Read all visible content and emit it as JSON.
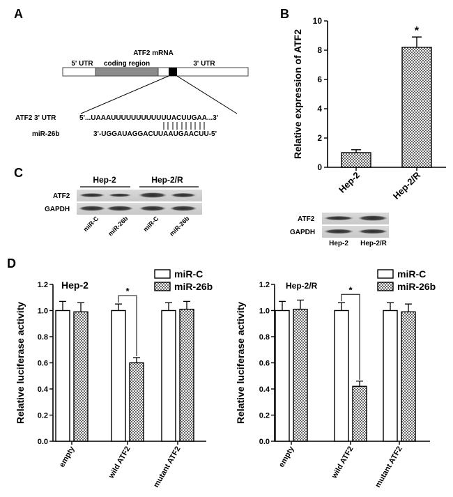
{
  "panel_labels": {
    "a": "A",
    "b": "B",
    "c": "C",
    "d": "D"
  },
  "panel_a": {
    "mrna_title": "ATF2 mRNA",
    "utr5": "5' UTR",
    "coding": "coding region",
    "utr3": "3' UTR",
    "seq1_label": "ATF2 3' UTR",
    "seq1": "5'...UAAAUUUUUUUUUUUUACUUGAA...3'",
    "seq2_label": "miR-26b",
    "seq2": "3'-UGGAUAGGACUUAAUGAACUU-5'"
  },
  "panel_c": {
    "group1": "Hep-2",
    "group2": "Hep-2/R",
    "row1": "ATF2",
    "row2": "GAPDH",
    "lanes": [
      "miR-C",
      "miR-26b",
      "miR-C",
      "miR-26b"
    ]
  },
  "blot_b": {
    "row1": "ATF2",
    "row2": "GAPDH",
    "lanes": [
      "Hep-2",
      "Hep-2/R"
    ]
  },
  "chart_data": [
    {
      "id": "B",
      "type": "bar",
      "title": "",
      "ylabel": "Relative expression of ATF2",
      "xlabel": "",
      "categories": [
        "Hep-2",
        "Hep-2/R"
      ],
      "values": [
        1.0,
        8.2
      ],
      "errors": [
        0.2,
        0.7
      ],
      "ylim": [
        0,
        10
      ],
      "yticks": [
        "0",
        "2",
        "4",
        "6",
        "8",
        "10"
      ],
      "significance": [
        "",
        "*"
      ]
    },
    {
      "id": "D-left",
      "type": "bar",
      "title": "Hep-2",
      "ylabel": "Relative luciferase activity",
      "categories": [
        "empty",
        "wild ATF2",
        "mutant ATF2"
      ],
      "series": [
        {
          "name": "miR-C",
          "values": [
            1.0,
            1.0,
            1.0
          ],
          "errors": [
            0.07,
            0.05,
            0.06
          ]
        },
        {
          "name": "miR-26b",
          "values": [
            0.99,
            0.6,
            1.01
          ],
          "errors": [
            0.07,
            0.04,
            0.06
          ]
        }
      ],
      "ylim": [
        0,
        1.2
      ],
      "yticks": [
        "0.0",
        "0.2",
        "0.4",
        "0.6",
        "0.8",
        "1.0",
        "1.2"
      ],
      "significance_marker": "*",
      "legend": "top-right"
    },
    {
      "id": "D-right",
      "type": "bar",
      "title": "Hep-2/R",
      "ylabel": "Relative luciferase activity",
      "categories": [
        "empty",
        "wild ATF2",
        "mutant ATF2"
      ],
      "series": [
        {
          "name": "miR-C",
          "values": [
            1.0,
            1.0,
            1.0
          ],
          "errors": [
            0.07,
            0.06,
            0.06
          ]
        },
        {
          "name": "miR-26b",
          "values": [
            1.01,
            0.42,
            0.99
          ],
          "errors": [
            0.07,
            0.04,
            0.06
          ]
        }
      ],
      "ylim": [
        0,
        1.2
      ],
      "yticks": [
        "0.0",
        "0.2",
        "0.4",
        "0.6",
        "0.8",
        "1.0",
        "1.2"
      ],
      "significance_marker": "*",
      "legend": "top-right"
    }
  ]
}
